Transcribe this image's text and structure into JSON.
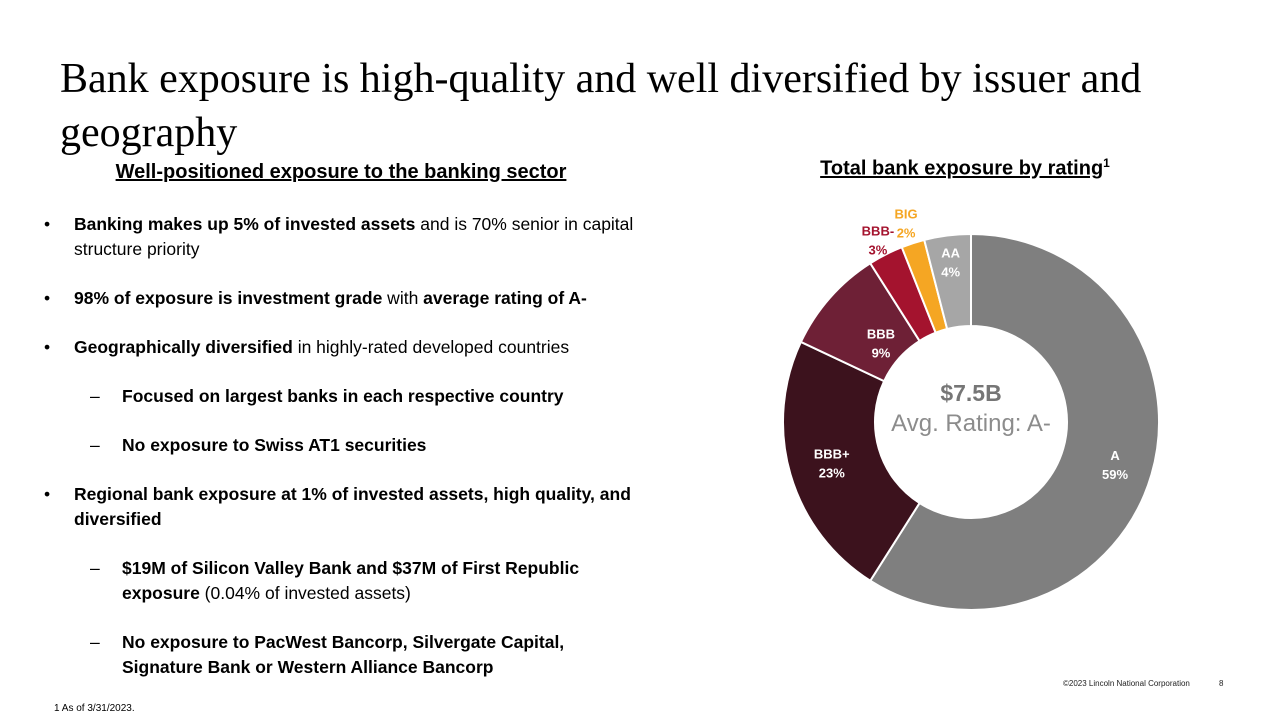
{
  "title": "Bank exposure is high-quality and well diversified by issuer and geography",
  "left_heading": "Well-positioned exposure to the banking sector",
  "bullets": [
    {
      "level": 1,
      "marker": "•",
      "bold": "Banking makes up 5% of invested assets",
      "text": " and is 70% senior in capital structure priority",
      "bold2": "",
      "text2": ""
    },
    {
      "level": 1,
      "marker": "•",
      "bold": "98% of exposure is investment grade",
      "text": " with ",
      "bold2": "average rating of A-",
      "text2": ""
    },
    {
      "level": 1,
      "marker": "•",
      "bold": "Geographically diversified",
      "text": " in highly-rated developed countries",
      "bold2": "",
      "text2": ""
    },
    {
      "level": 2,
      "marker": "–",
      "bold": "Focused on largest banks in each respective country",
      "text": "",
      "bold2": "",
      "text2": ""
    },
    {
      "level": 2,
      "marker": "–",
      "bold": "No exposure to Swiss AT1 securities",
      "text": "",
      "bold2": "",
      "text2": ""
    },
    {
      "level": 1,
      "marker": "•",
      "bold": "Regional bank exposure at 1% of invested assets, high quality, and diversified",
      "text": "",
      "bold2": "",
      "text2": ""
    },
    {
      "level": 2,
      "marker": "–",
      "bold": "$19M of Silicon Valley Bank and $37M of First Republic exposure",
      "text": " (0.04% of invested assets)",
      "bold2": "",
      "text2": ""
    },
    {
      "level": 2,
      "marker": "–",
      "bold": "No exposure to PacWest Bancorp, Silvergate Capital, Signature Bank or Western Alliance Bancorp",
      "text": "",
      "bold2": "",
      "text2": ""
    }
  ],
  "right_heading": {
    "text": "Total bank exposure by rating",
    "superscript": "1"
  },
  "center": {
    "amount": "$7.5B",
    "rating": "Avg. Rating: A-"
  },
  "chart_data": {
    "type": "pie",
    "title": "Total bank exposure by rating",
    "hole": true,
    "start": "top",
    "direction": "clockwise",
    "slices": [
      {
        "label": "A",
        "value": 59,
        "display": "59%",
        "color": "#7f7f7f",
        "label_color": "#ffffff"
      },
      {
        "label": "BBB+",
        "value": 23,
        "display": "23%",
        "color": "#3c121d",
        "label_color": "#ffffff"
      },
      {
        "label": "BBB",
        "value": 9,
        "display": "9%",
        "color": "#6e2036",
        "label_color": "#ffffff"
      },
      {
        "label": "BBB-",
        "value": 3,
        "display": "3%",
        "color": "#a4132e",
        "label_color": "#a4132e"
      },
      {
        "label": "BIG",
        "value": 2,
        "display": "2%",
        "color": "#f5a623",
        "label_color": "#f5a623"
      },
      {
        "label": "AA",
        "value": 4,
        "display": "4%",
        "color": "#a6a6a6",
        "label_color": "#ffffff"
      }
    ]
  },
  "footnote": "1  As of 3/31/2023.",
  "copyright": "©2023 Lincoln National Corporation",
  "page_number": "8"
}
